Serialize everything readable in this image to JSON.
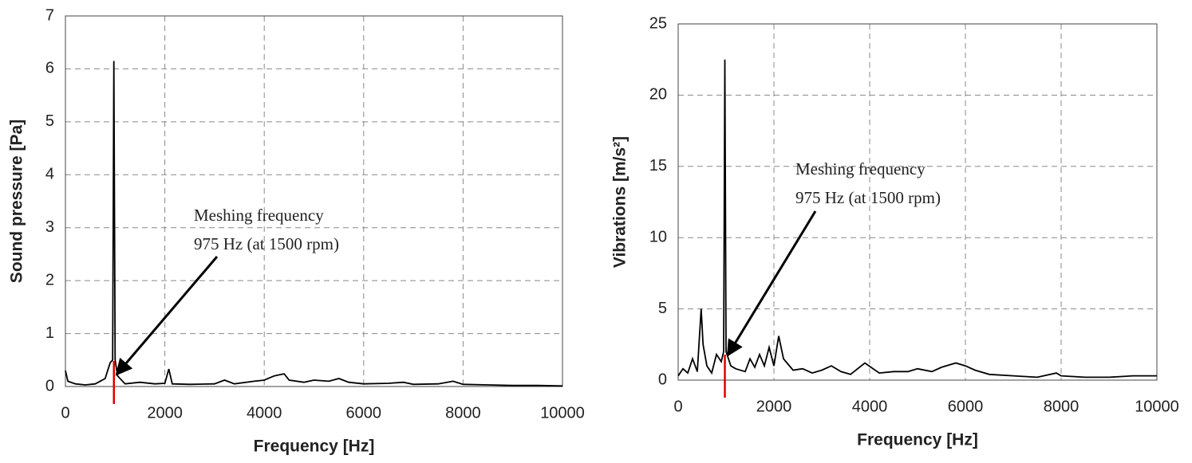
{
  "chart_data": [
    {
      "type": "line",
      "xlabel": "Frequency [Hz]",
      "ylabel": "Sound pressure [Pa]",
      "annotation": [
        "Meshing frequency",
        "975 Hz (at 1500 rpm)"
      ],
      "marker_x": 975,
      "marker_color": "#e00000",
      "grid": true,
      "xlim": [
        0,
        10000
      ],
      "xticks": [
        0,
        2000,
        4000,
        6000,
        8000,
        10000
      ],
      "ylim": [
        0,
        7
      ],
      "yticks": [
        0,
        1,
        2,
        3,
        4,
        5,
        6,
        7
      ],
      "x": [
        0,
        50,
        200,
        400,
        600,
        800,
        900,
        950,
        975,
        1000,
        1050,
        1200,
        1500,
        1800,
        2000,
        2080,
        2150,
        2500,
        3000,
        3200,
        3400,
        3800,
        4000,
        4200,
        4300,
        4400,
        4500,
        4800,
        5000,
        5300,
        5500,
        5700,
        6000,
        6500,
        6800,
        7000,
        7500,
        7800,
        8000,
        8500,
        9000,
        9500,
        10000
      ],
      "series": [
        {
          "color": "#000000",
          "values": [
            0.3,
            0.1,
            0.05,
            0.03,
            0.05,
            0.15,
            0.45,
            0.5,
            6.15,
            0.5,
            0.2,
            0.05,
            0.08,
            0.05,
            0.06,
            0.33,
            0.05,
            0.04,
            0.05,
            0.12,
            0.05,
            0.1,
            0.12,
            0.2,
            0.22,
            0.24,
            0.12,
            0.08,
            0.12,
            0.1,
            0.15,
            0.08,
            0.05,
            0.06,
            0.08,
            0.04,
            0.05,
            0.1,
            0.04,
            0.03,
            0.02,
            0.02,
            0.01
          ]
        }
      ]
    },
    {
      "type": "line",
      "xlabel": "Frequency [Hz]",
      "ylabel": "Vibrations [m/s²]",
      "annotation": [
        "Meshing frequency",
        "975 Hz (at 1500 rpm)"
      ],
      "marker_x": 975,
      "marker_color": "#e00000",
      "grid": true,
      "xlim": [
        0,
        10000
      ],
      "xticks": [
        0,
        2000,
        4000,
        6000,
        8000,
        10000
      ],
      "ylim": [
        0,
        25
      ],
      "yticks": [
        0,
        5,
        10,
        15,
        20,
        25
      ],
      "x": [
        0,
        100,
        200,
        300,
        400,
        480,
        520,
        600,
        700,
        800,
        900,
        950,
        975,
        1000,
        1100,
        1200,
        1400,
        1500,
        1600,
        1700,
        1800,
        1900,
        2000,
        2100,
        2200,
        2400,
        2600,
        2800,
        3000,
        3200,
        3400,
        3600,
        3900,
        4200,
        4500,
        4800,
        5000,
        5300,
        5500,
        5800,
        6000,
        6200,
        6500,
        7000,
        7500,
        7900,
        8000,
        8500,
        9000,
        9500,
        10000
      ],
      "series": [
        {
          "color": "#000000",
          "values": [
            0.3,
            0.8,
            0.5,
            1.5,
            0.6,
            5.0,
            2.5,
            1.0,
            0.5,
            1.8,
            1.3,
            2.0,
            22.5,
            2.0,
            1.0,
            0.8,
            0.6,
            1.5,
            0.9,
            1.8,
            1.0,
            2.3,
            1.0,
            3.1,
            1.5,
            0.7,
            0.8,
            0.5,
            0.7,
            1.0,
            0.6,
            0.4,
            1.2,
            0.5,
            0.6,
            0.6,
            0.8,
            0.6,
            0.9,
            1.2,
            1.0,
            0.7,
            0.4,
            0.3,
            0.2,
            0.5,
            0.3,
            0.2,
            0.2,
            0.3,
            0.3
          ]
        }
      ]
    }
  ]
}
